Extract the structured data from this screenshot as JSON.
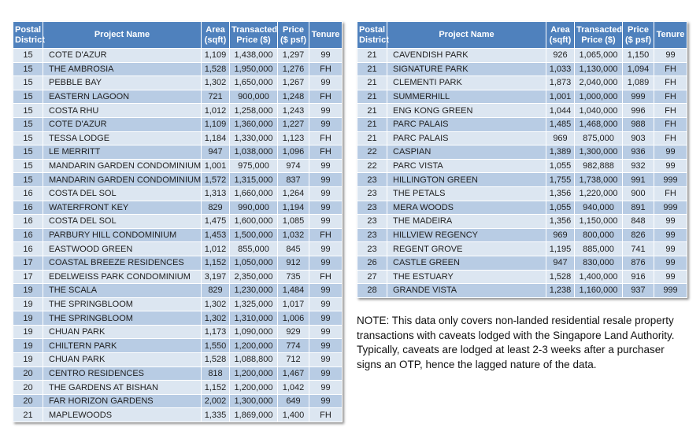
{
  "colors": {
    "header_bg": "#4F81BD",
    "header_text": "#FFFFFF",
    "row_light": "#DCE6F1",
    "row_dark": "#B8CCE4",
    "body_text": "#1F1F1F"
  },
  "left_table": {
    "columns": [
      "Postal District",
      "Project Name",
      "Area (sqft)",
      "Transacted Price ($)",
      "Price ($ psf)",
      "Tenure"
    ],
    "col_keys": [
      "postal-district",
      "project-name",
      "area-sqft",
      "transacted-price",
      "price-psf",
      "tenure"
    ],
    "rows": [
      [
        "15",
        "COTE D'AZUR",
        "1,109",
        "1,438,000",
        "1,297",
        "99"
      ],
      [
        "15",
        "THE AMBROSIA",
        "1,528",
        "1,950,000",
        "1,276",
        "FH"
      ],
      [
        "15",
        "PEBBLE BAY",
        "1,302",
        "1,650,000",
        "1,267",
        "99"
      ],
      [
        "15",
        "EASTERN LAGOON",
        "721",
        "900,000",
        "1,248",
        "FH"
      ],
      [
        "15",
        "COSTA RHU",
        "1,012",
        "1,258,000",
        "1,243",
        "99"
      ],
      [
        "15",
        "COTE D'AZUR",
        "1,109",
        "1,360,000",
        "1,227",
        "99"
      ],
      [
        "15",
        "TESSA LODGE",
        "1,184",
        "1,330,000",
        "1,123",
        "FH"
      ],
      [
        "15",
        "LE MERRITT",
        "947",
        "1,038,000",
        "1,096",
        "FH"
      ],
      [
        "15",
        "MANDARIN GARDEN CONDOMINIUM",
        "1,001",
        "975,000",
        "974",
        "99"
      ],
      [
        "15",
        "MANDARIN GARDEN CONDOMINIUM",
        "1,572",
        "1,315,000",
        "837",
        "99"
      ],
      [
        "16",
        "COSTA DEL SOL",
        "1,313",
        "1,660,000",
        "1,264",
        "99"
      ],
      [
        "16",
        "WATERFRONT KEY",
        "829",
        "990,000",
        "1,194",
        "99"
      ],
      [
        "16",
        "COSTA DEL SOL",
        "1,475",
        "1,600,000",
        "1,085",
        "99"
      ],
      [
        "16",
        "PARBURY HILL CONDOMINIUM",
        "1,453",
        "1,500,000",
        "1,032",
        "FH"
      ],
      [
        "16",
        "EASTWOOD GREEN",
        "1,012",
        "855,000",
        "845",
        "99"
      ],
      [
        "17",
        "COASTAL BREEZE RESIDENCES",
        "1,152",
        "1,050,000",
        "912",
        "99"
      ],
      [
        "17",
        "EDELWEISS PARK CONDOMINIUM",
        "3,197",
        "2,350,000",
        "735",
        "FH"
      ],
      [
        "19",
        "THE SCALA",
        "829",
        "1,230,000",
        "1,484",
        "99"
      ],
      [
        "19",
        "THE SPRINGBLOOM",
        "1,302",
        "1,325,000",
        "1,017",
        "99"
      ],
      [
        "19",
        "THE SPRINGBLOOM",
        "1,302",
        "1,310,000",
        "1,006",
        "99"
      ],
      [
        "19",
        "CHUAN PARK",
        "1,173",
        "1,090,000",
        "929",
        "99"
      ],
      [
        "19",
        "CHILTERN PARK",
        "1,550",
        "1,200,000",
        "774",
        "99"
      ],
      [
        "19",
        "CHUAN PARK",
        "1,528",
        "1,088,800",
        "712",
        "99"
      ],
      [
        "20",
        "CENTRO RESIDENCES",
        "818",
        "1,200,000",
        "1,467",
        "99"
      ],
      [
        "20",
        "THE GARDENS AT BISHAN",
        "1,152",
        "1,200,000",
        "1,042",
        "99"
      ],
      [
        "20",
        "FAR HORIZON GARDENS",
        "2,002",
        "1,300,000",
        "649",
        "99"
      ],
      [
        "21",
        "MAPLEWOODS",
        "1,335",
        "1,869,000",
        "1,400",
        "FH"
      ]
    ]
  },
  "right_table": {
    "columns": [
      "Postal District",
      "Project Name",
      "Area (sqft)",
      "Transacted Price ($)",
      "Price ($ psf)",
      "Tenure"
    ],
    "col_keys": [
      "postal-district",
      "project-name",
      "area-sqft",
      "transacted-price",
      "price-psf",
      "tenure"
    ],
    "rows": [
      [
        "21",
        "CAVENDISH PARK",
        "926",
        "1,065,000",
        "1,150",
        "99"
      ],
      [
        "21",
        "SIGNATURE PARK",
        "1,033",
        "1,130,000",
        "1,094",
        "FH"
      ],
      [
        "21",
        "CLEMENTI PARK",
        "1,873",
        "2,040,000",
        "1,089",
        "FH"
      ],
      [
        "21",
        "SUMMERHILL",
        "1,001",
        "1,000,000",
        "999",
        "FH"
      ],
      [
        "21",
        "ENG KONG GREEN",
        "1,044",
        "1,040,000",
        "996",
        "FH"
      ],
      [
        "21",
        "PARC PALAIS",
        "1,485",
        "1,468,000",
        "988",
        "FH"
      ],
      [
        "21",
        "PARC PALAIS",
        "969",
        "875,000",
        "903",
        "FH"
      ],
      [
        "22",
        "CASPIAN",
        "1,389",
        "1,300,000",
        "936",
        "99"
      ],
      [
        "22",
        "PARC VISTA",
        "1,055",
        "982,888",
        "932",
        "99"
      ],
      [
        "23",
        "HILLINGTON GREEN",
        "1,755",
        "1,738,000",
        "991",
        "999"
      ],
      [
        "23",
        "THE PETALS",
        "1,356",
        "1,220,000",
        "900",
        "FH"
      ],
      [
        "23",
        "MERA WOODS",
        "1,055",
        "940,000",
        "891",
        "999"
      ],
      [
        "23",
        "THE MADEIRA",
        "1,356",
        "1,150,000",
        "848",
        "99"
      ],
      [
        "23",
        "HILLVIEW REGENCY",
        "969",
        "800,000",
        "826",
        "99"
      ],
      [
        "23",
        "REGENT GROVE",
        "1,195",
        "885,000",
        "741",
        "99"
      ],
      [
        "26",
        "CASTLE GREEN",
        "947",
        "830,000",
        "876",
        "99"
      ],
      [
        "27",
        "THE ESTUARY",
        "1,528",
        "1,400,000",
        "916",
        "99"
      ],
      [
        "28",
        "GRANDE VISTA",
        "1,238",
        "1,160,000",
        "937",
        "999"
      ]
    ]
  },
  "note": {
    "text": "NOTE: This data only covers non-landed residential resale property transactions with caveats lodged with the Singapore Land Authority. Typically, caveats are lodged at least 2-3 weeks after a purchaser signs an OTP, hence the lagged nature of the data."
  }
}
